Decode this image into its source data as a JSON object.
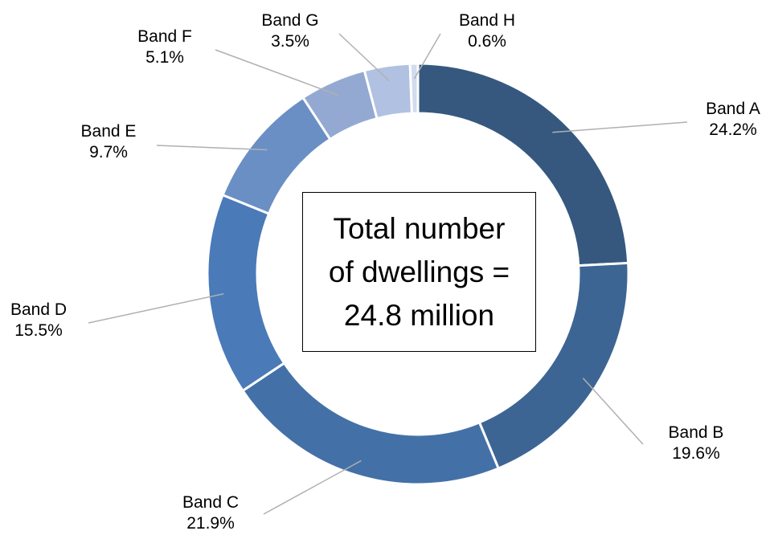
{
  "chart_data": {
    "type": "pie",
    "donut": true,
    "categories": [
      "Band A",
      "Band B",
      "Band C",
      "Band D",
      "Band E",
      "Band F",
      "Band G",
      "Band H"
    ],
    "values": [
      24.2,
      19.6,
      21.9,
      15.5,
      9.7,
      5.1,
      3.5,
      0.6
    ],
    "value_labels": [
      "24.2%",
      "19.6%",
      "21.9%",
      "15.5%",
      "9.7%",
      "5.1%",
      "3.5%",
      "0.6%"
    ],
    "center_text": [
      "Total number",
      "of dwellings =",
      "24.8 million"
    ],
    "colors": [
      "#36587f",
      "#3d6594",
      "#4371a7",
      "#4a7ab8",
      "#6a8fc4",
      "#93a9d2",
      "#b1c1e1",
      "#d2dcef"
    ],
    "legend": "none",
    "grid": false
  }
}
